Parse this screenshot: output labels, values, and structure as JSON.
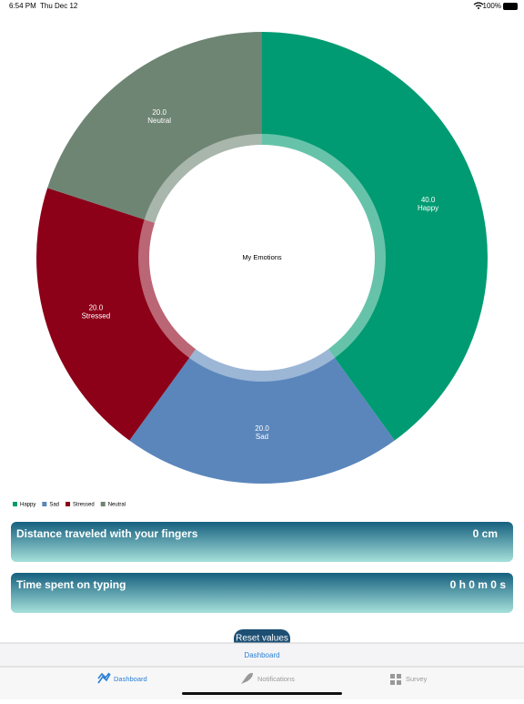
{
  "status_bar": {
    "time": "6:54 PM",
    "date": "Thu Dec 12",
    "battery": "100%"
  },
  "chart_data": {
    "type": "pie",
    "center_label": "My Emotions",
    "categories": [
      "Happy",
      "Sad",
      "Stressed",
      "Neutral"
    ],
    "values": [
      40,
      20,
      20,
      20
    ],
    "value_labels": [
      "40.0",
      "20.0",
      "20.0",
      "20.0"
    ],
    "colors": [
      "#009b72",
      "#5a86bb",
      "#8c0018",
      "#6e8573"
    ],
    "legend": "bottom-left"
  },
  "cards": [
    {
      "title": "Distance traveled with your fingers",
      "value": "0 cm"
    },
    {
      "title": "Time spent on typing",
      "value": "0 h 0 m 0 s"
    }
  ],
  "button": "Reset values",
  "nav_title": "Dashboard",
  "tabs": [
    "Dashboard",
    "Notifications",
    "Survey"
  ]
}
